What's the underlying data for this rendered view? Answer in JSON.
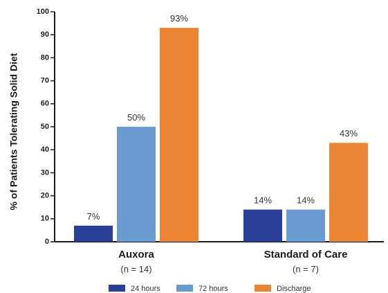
{
  "chart_data": {
    "type": "bar",
    "ylabel": "% of Patients Tolerating Solid Diet",
    "xlabel": "",
    "ylim": [
      0,
      100
    ],
    "yticks": [
      0,
      10,
      20,
      30,
      40,
      50,
      60,
      70,
      80,
      90,
      100
    ],
    "categories": [
      "Auxora",
      "Standard of Care"
    ],
    "category_sublabels": [
      "(n = 14)",
      "(n = 7)"
    ],
    "series": [
      {
        "name": "24 hours",
        "values": [
          7,
          14
        ],
        "labels": [
          "7%",
          "14%"
        ],
        "color": "#2c3f96"
      },
      {
        "name": "72 hours",
        "values": [
          50,
          14
        ],
        "labels": [
          "50%",
          "14%"
        ],
        "color": "#6a9bd1"
      },
      {
        "name": "Discharge",
        "values": [
          93,
          43
        ],
        "labels": [
          "93%",
          "43%"
        ],
        "color": "#ec8533"
      }
    ],
    "legend_position": "bottom",
    "grid": false
  }
}
